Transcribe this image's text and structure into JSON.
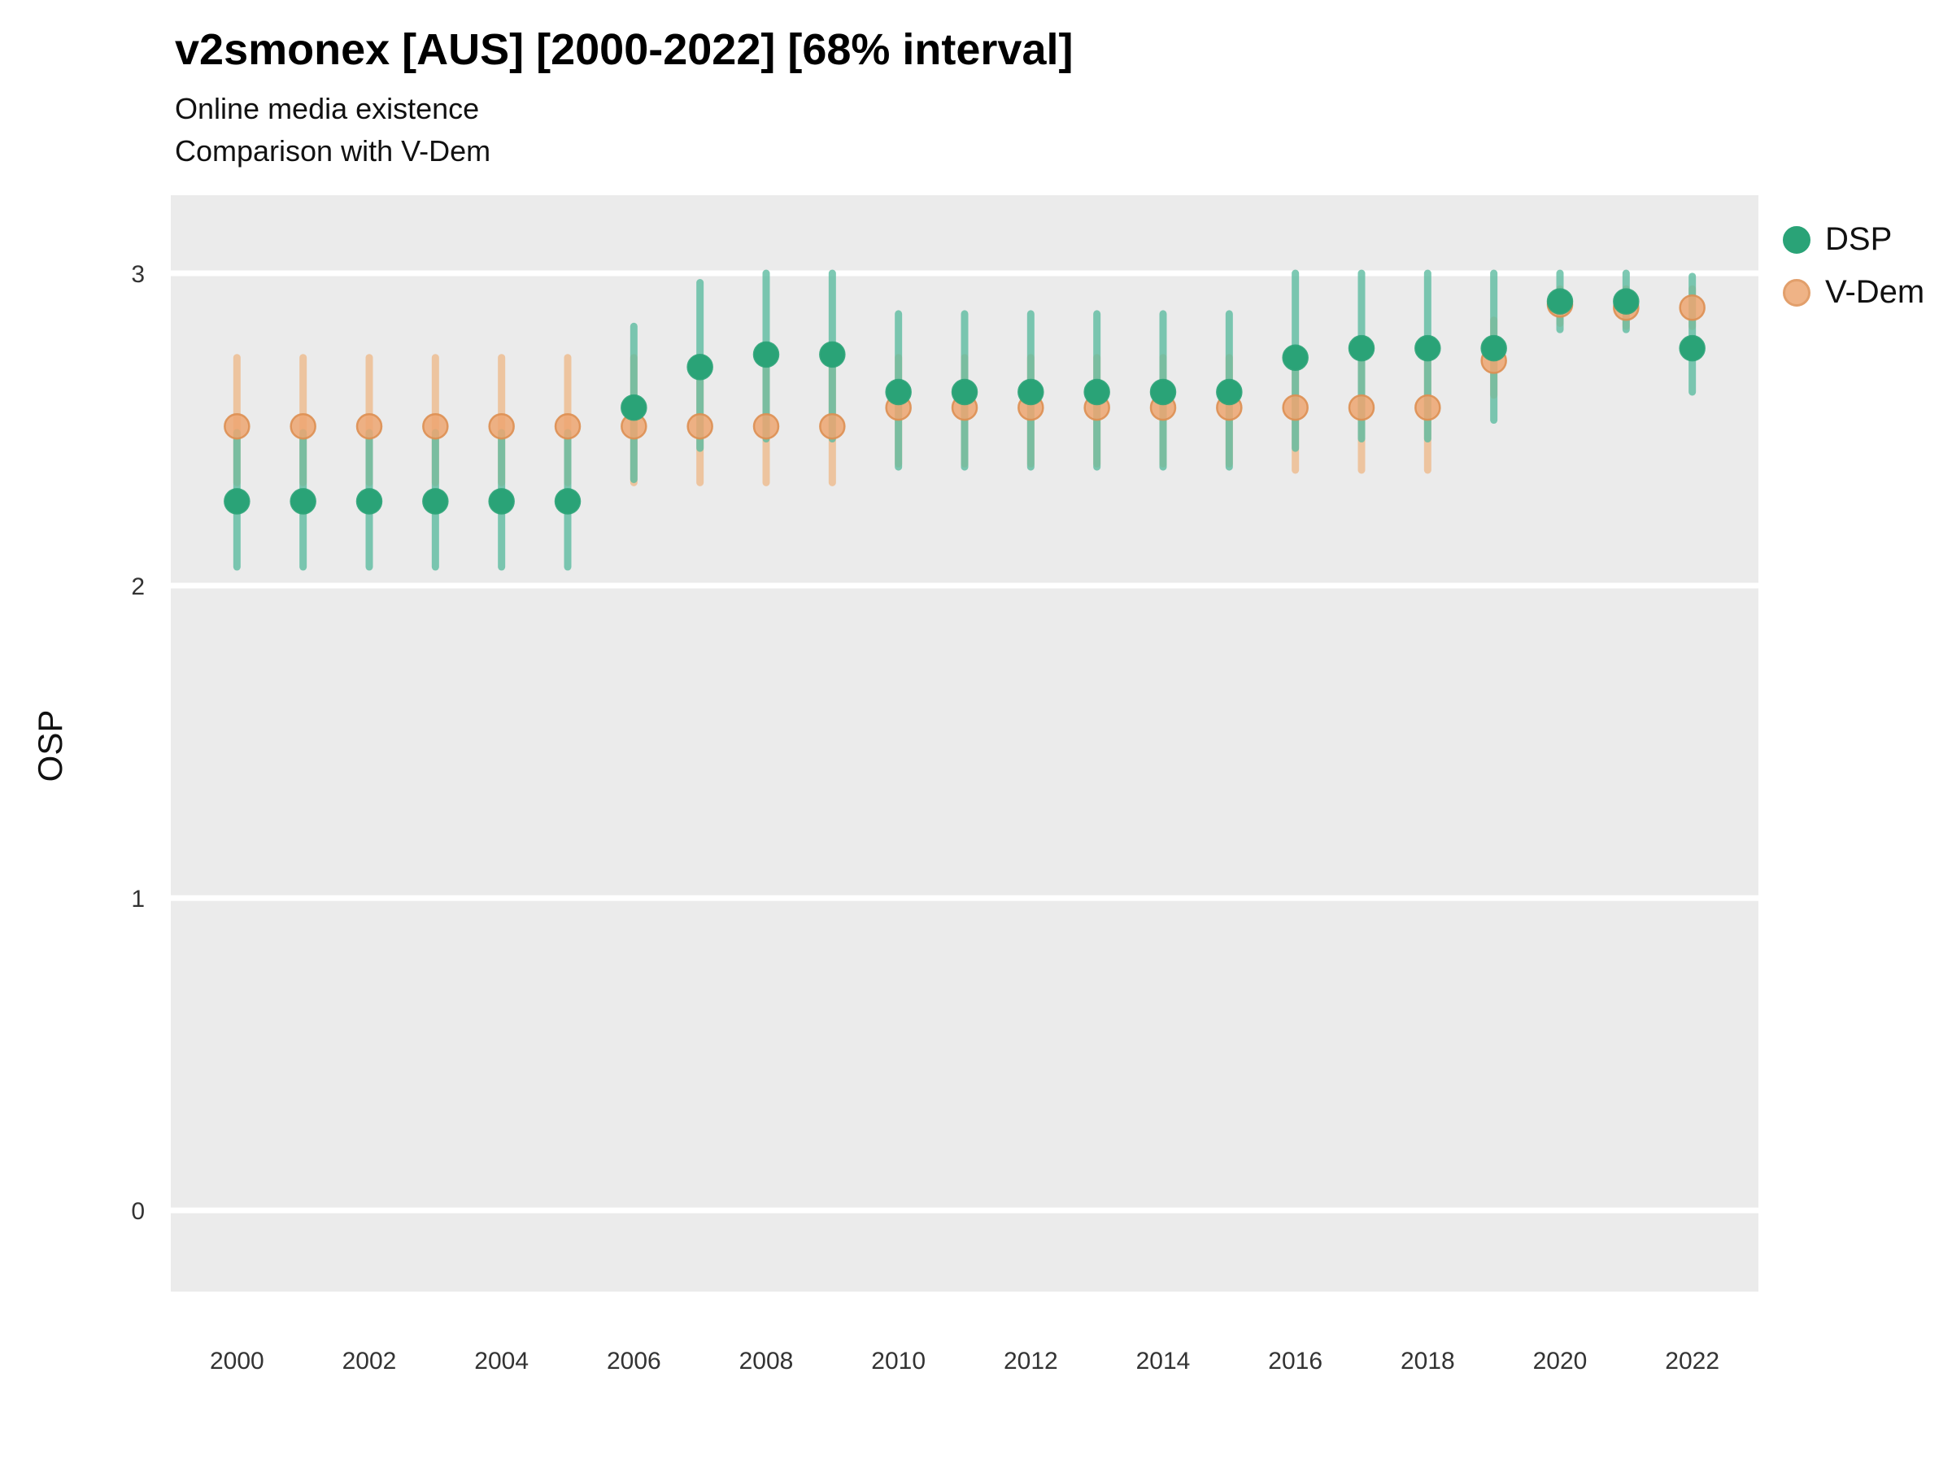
{
  "chart_data": {
    "type": "scatter",
    "title": "v2smonex [AUS] [2000-2022] [68% interval]",
    "subtitle": [
      "Online media existence",
      "Comparison with V-Dem"
    ],
    "xlabel": "",
    "ylabel": "OSP",
    "interval_label": "68% interval",
    "x": [
      2000,
      2001,
      2002,
      2003,
      2004,
      2005,
      2006,
      2007,
      2008,
      2009,
      2010,
      2011,
      2012,
      2013,
      2014,
      2015,
      2016,
      2017,
      2018,
      2019,
      2020,
      2021,
      2022
    ],
    "x_ticks": [
      2000,
      2002,
      2004,
      2006,
      2008,
      2010,
      2012,
      2014,
      2016,
      2018,
      2020,
      2022
    ],
    "y_ticks": [
      0,
      1,
      2,
      3
    ],
    "x_domain": [
      1999,
      2023
    ],
    "y_domain": [
      -0.26,
      3.25
    ],
    "panel_color": "#ebebeb",
    "grid_color": "#ffffff",
    "tick_color": "#333333",
    "legend_position": "right-top",
    "series": [
      {
        "name": "V-Dem",
        "fill": "#eda671",
        "stroke": "#dd8f52",
        "bar_color": "#edbd92",
        "bar_opacity": 0.85,
        "marker_opacity": 0.85,
        "marker_radius": 15,
        "values": [
          2.51,
          2.51,
          2.51,
          2.51,
          2.51,
          2.51,
          2.51,
          2.51,
          2.51,
          2.51,
          2.57,
          2.57,
          2.57,
          2.57,
          2.57,
          2.57,
          2.57,
          2.57,
          2.57,
          2.72,
          2.9,
          2.89,
          2.89
        ],
        "lo": [
          2.33,
          2.33,
          2.33,
          2.33,
          2.33,
          2.33,
          2.33,
          2.33,
          2.33,
          2.33,
          2.39,
          2.39,
          2.39,
          2.39,
          2.39,
          2.39,
          2.37,
          2.37,
          2.37,
          2.61,
          2.84,
          2.83,
          2.83
        ],
        "hi": [
          2.73,
          2.73,
          2.73,
          2.73,
          2.73,
          2.73,
          2.73,
          2.73,
          2.73,
          2.73,
          2.73,
          2.73,
          2.73,
          2.73,
          2.73,
          2.73,
          2.72,
          2.72,
          2.72,
          2.85,
          2.95,
          2.95,
          2.95
        ]
      },
      {
        "name": "DSP",
        "fill": "#2aa377",
        "stroke": "#2aa377",
        "bar_color": "#5cbca0",
        "bar_opacity": 0.8,
        "marker_opacity": 1,
        "marker_radius": 15,
        "values": [
          2.27,
          2.27,
          2.27,
          2.27,
          2.27,
          2.27,
          2.57,
          2.7,
          2.74,
          2.74,
          2.62,
          2.62,
          2.62,
          2.62,
          2.62,
          2.62,
          2.73,
          2.76,
          2.76,
          2.76,
          2.91,
          2.91,
          2.76
        ],
        "lo": [
          2.06,
          2.06,
          2.06,
          2.06,
          2.06,
          2.06,
          2.34,
          2.44,
          2.47,
          2.47,
          2.38,
          2.38,
          2.38,
          2.38,
          2.38,
          2.38,
          2.44,
          2.47,
          2.47,
          2.53,
          2.82,
          2.82,
          2.62
        ],
        "hi": [
          2.49,
          2.49,
          2.49,
          2.49,
          2.49,
          2.49,
          2.83,
          2.97,
          3.0,
          3.0,
          2.87,
          2.87,
          2.87,
          2.87,
          2.87,
          2.87,
          3.0,
          3.0,
          3.0,
          3.0,
          3.0,
          3.0,
          2.99
        ]
      }
    ]
  }
}
